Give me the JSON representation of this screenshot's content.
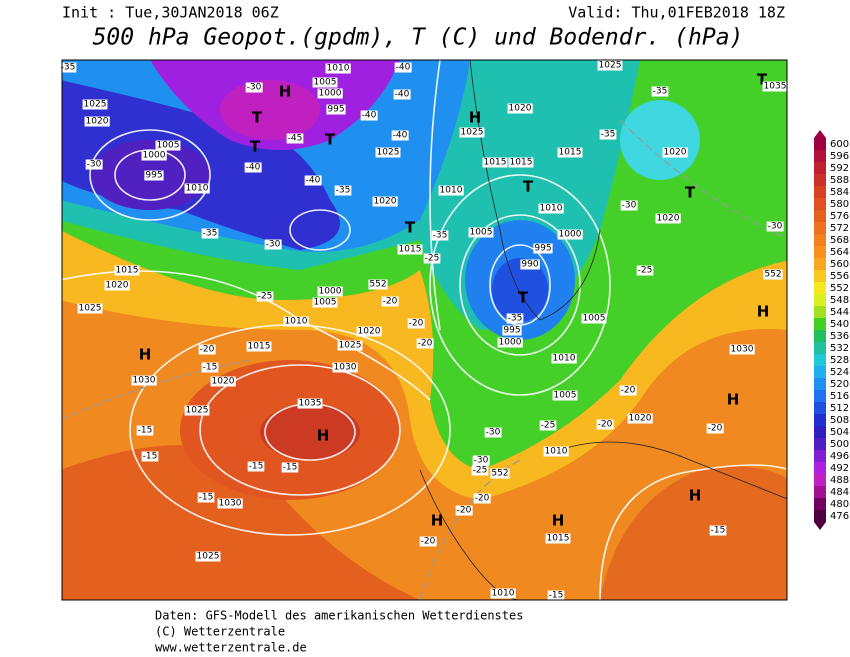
{
  "header": {
    "init": "Init : Tue,30JAN2018 06Z",
    "valid": "Valid: Thu,01FEB2018 18Z",
    "title": "500 hPa Geopot.(gpdm), T (C) und Bodendr. (hPa)"
  },
  "colorbar": {
    "labels": [
      "600",
      "596",
      "592",
      "588",
      "584",
      "580",
      "576",
      "572",
      "568",
      "564",
      "560",
      "556",
      "552",
      "548",
      "544",
      "540",
      "536",
      "532",
      "528",
      "524",
      "520",
      "516",
      "512",
      "508",
      "504",
      "500",
      "496",
      "492",
      "488",
      "484",
      "480",
      "476"
    ],
    "colors": [
      "#9e0142",
      "#b0103a",
      "#c02030",
      "#cc3028",
      "#d84020",
      "#e05020",
      "#e86020",
      "#f07020",
      "#f48020",
      "#f89020",
      "#f8a820",
      "#f8c820",
      "#f8e820",
      "#d8f020",
      "#a0e020",
      "#40d020",
      "#20c060",
      "#20c0a0",
      "#20c8d8",
      "#20b0f0",
      "#2090f0",
      "#2070f0",
      "#2050e0",
      "#2030d0",
      "#3020c0",
      "#5020c0",
      "#8020d0",
      "#b020e0",
      "#c020c0",
      "#a01090",
      "#700060",
      "#500040"
    ]
  },
  "map": {
    "centers": [
      "H",
      "H",
      "H",
      "H",
      "H",
      "H",
      "H",
      "H",
      "H",
      "T",
      "T",
      "T",
      "T",
      "T",
      "T",
      "T",
      "T"
    ],
    "labels": [
      "1035",
      "1030",
      "1030",
      "1025",
      "1025",
      "1025",
      "1020",
      "1015",
      "1010",
      "1005",
      "1000",
      "1015",
      "1020",
      "1025",
      "1030",
      "1020",
      "1010",
      "1005",
      "1000",
      "995",
      "1025",
      "1020",
      "1005",
      "1000",
      "995",
      "1010",
      "1025",
      "1020",
      "1015",
      "1010",
      "1005",
      "1000",
      "995",
      "990",
      "995",
      "1000",
      "1005",
      "1010",
      "1005",
      "1010",
      "1020",
      "1025",
      "1015",
      "1015",
      "1015",
      "1010",
      "1020",
      "1020",
      "1025",
      "1035",
      "1030",
      "1020",
      "1015",
      "1010",
      "-35",
      "-30",
      "-35",
      "-30",
      "-40",
      "-45",
      "-40",
      "-35",
      "-30",
      "-25",
      "-20",
      "-15",
      "-35",
      "-25",
      "-20",
      "-20",
      "-20",
      "-35",
      "-25",
      "-30",
      "-35",
      "-35",
      "-40",
      "-40",
      "-40",
      "-40",
      "-30",
      "-20",
      "-20",
      "-20",
      "-25",
      "-30",
      "-30",
      "-25",
      "-20",
      "-20",
      "-20",
      "-15",
      "-15",
      "-15",
      "-15",
      "-15",
      "-15",
      "-15",
      "552",
      "552",
      "552"
    ]
  },
  "footer": {
    "line1": "Daten: GFS-Modell des amerikanischen Wetterdienstes",
    "line2": "(C) Wetterzentrale",
    "line3": "www.wetterzentrale.de"
  }
}
